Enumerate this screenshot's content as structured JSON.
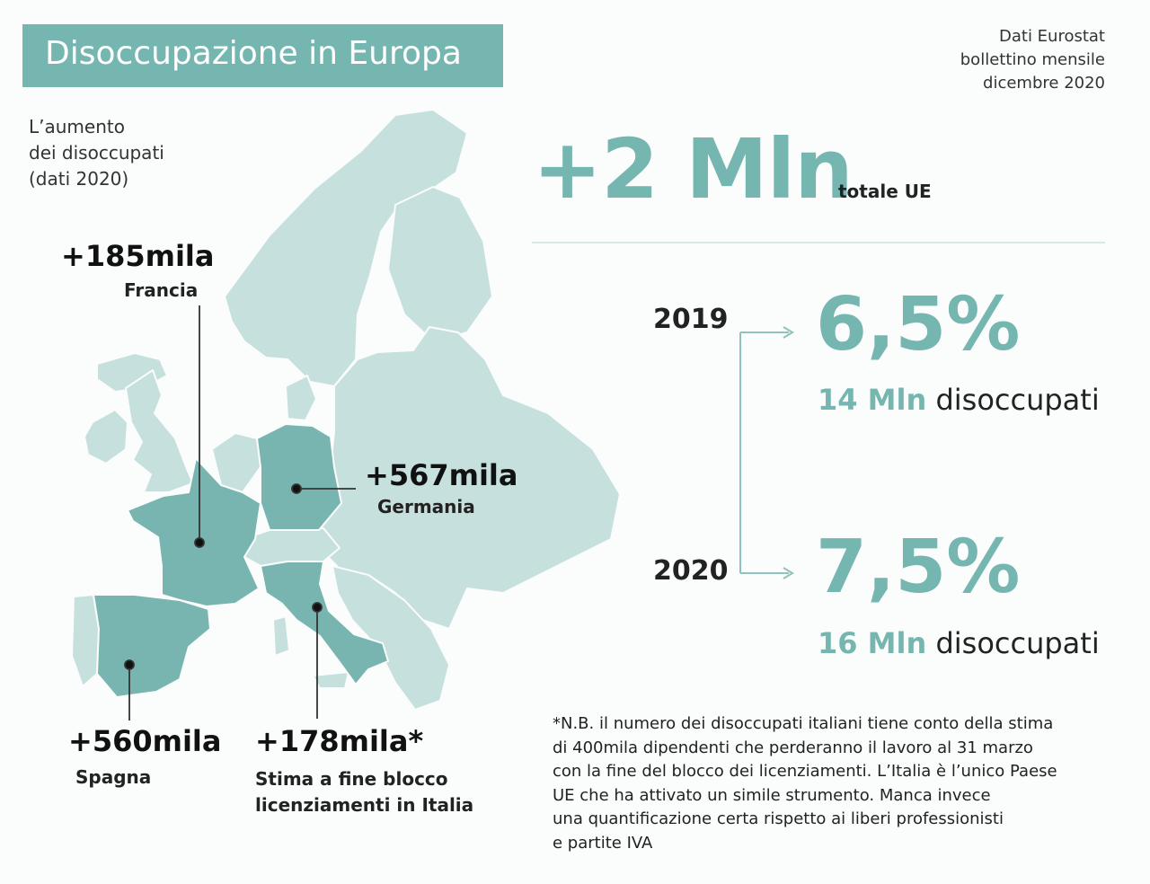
{
  "header": {
    "title": "Disoccupazione in Europa",
    "source_lines": [
      "Dati Eurostat",
      "bollettino mensile",
      "dicembre 2020"
    ]
  },
  "map": {
    "subtitle_lines": [
      "L’aumento",
      "dei disoccupati",
      "(dati 2020)"
    ],
    "colors": {
      "highlight": "#78b5b0",
      "other": "#c6e0dd",
      "background": "#fbfcfc"
    },
    "callouts": [
      {
        "country": "Francia",
        "value": "+185mila",
        "label_lines": [
          "Francia"
        ]
      },
      {
        "country": "Germania",
        "value": "+567mila",
        "label_lines": [
          "Germania"
        ]
      },
      {
        "country": "Spagna",
        "value": "+560mila",
        "label_lines": [
          "Spagna"
        ]
      },
      {
        "country": "Italia",
        "value": "+178mila*",
        "label_lines": [
          "Stima a fine blocco",
          "licenziamenti in Italia"
        ]
      }
    ]
  },
  "summary": {
    "total_value": "+2 Mln",
    "total_label": "totale UE",
    "years": [
      {
        "year": "2019",
        "rate": "6,5%",
        "count_value": "14 Mln",
        "count_label": "disoccupati"
      },
      {
        "year": "2020",
        "rate": "7,5%",
        "count_value": "16 Mln",
        "count_label": "disoccupati"
      }
    ]
  },
  "note_lines": [
    "*N.B. il numero dei disoccupati italiani tiene conto della stima",
    "di 400mila dipendenti che perderanno il lavoro al 31 marzo",
    "con la fine del blocco dei licenziamenti. L’Italia è l’unico Paese",
    "UE che ha attivato un simile strumento. Manca invece",
    "una quantificazione certa rispetto ai liberi professionisti",
    "e partite IVA"
  ]
}
